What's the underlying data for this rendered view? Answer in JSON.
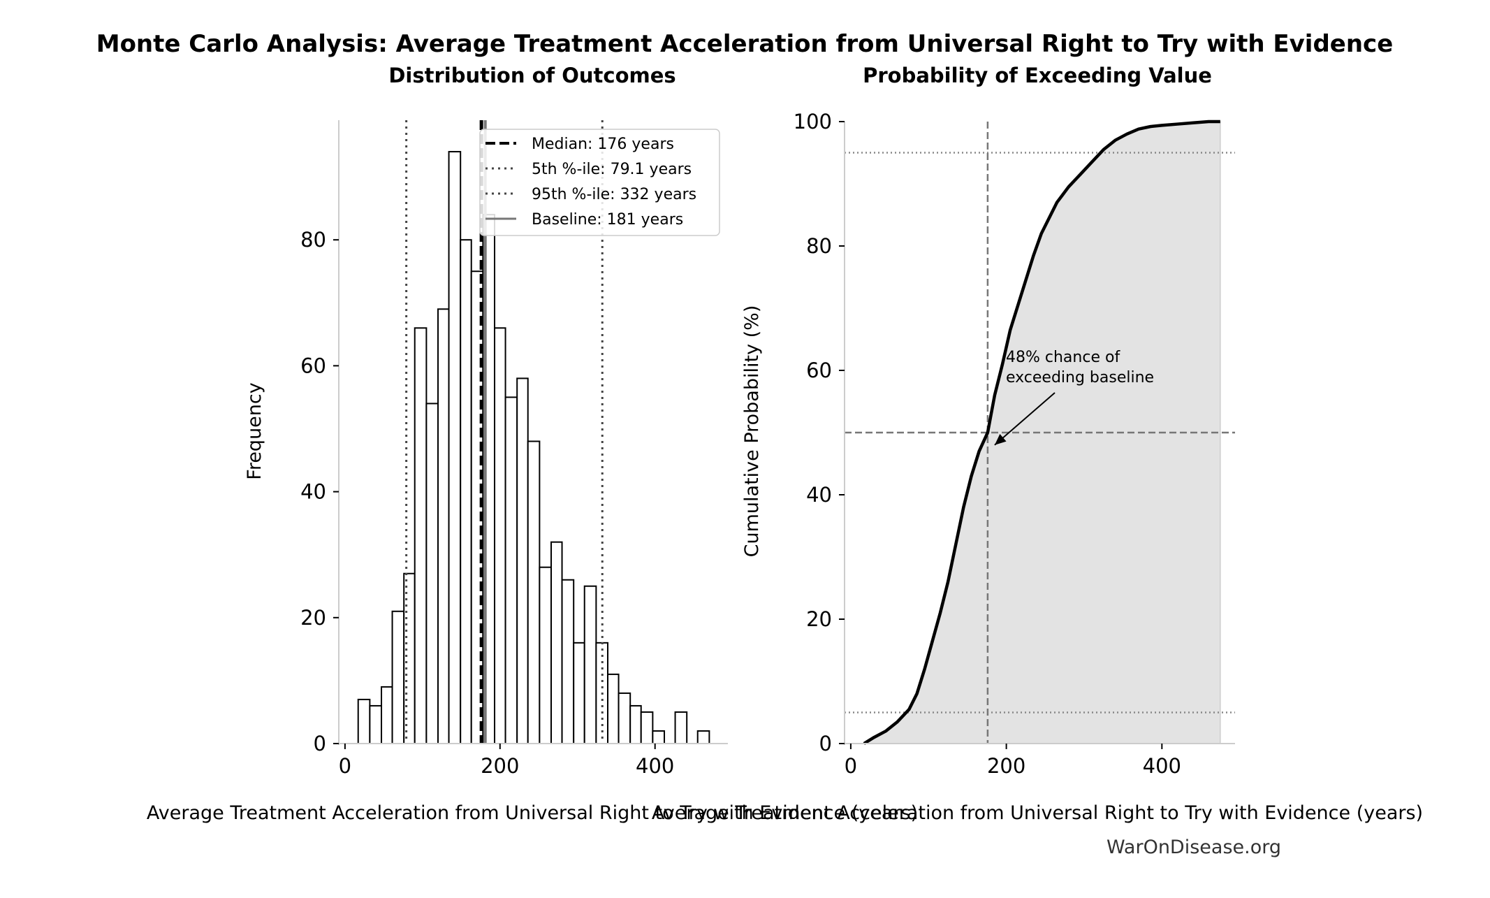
{
  "figure": {
    "title": "Monte Carlo Analysis: Average Treatment Acceleration from Universal Right to Try with Evidence",
    "footer": "WarOnDisease.org"
  },
  "chart_data": [
    {
      "type": "bar",
      "subtype": "histogram",
      "title": "Distribution of Outcomes",
      "xlabel": "Average Treatment Acceleration from Universal Right to Try with Evidence (years)",
      "ylabel": "Frequency",
      "xlim": [
        -8,
        494
      ],
      "ylim": [
        0,
        99
      ],
      "xticks": [
        0,
        200,
        400
      ],
      "yticks": [
        0,
        20,
        40,
        60,
        80
      ],
      "bins": [
        {
          "x0": 17,
          "x1": 32,
          "count": 7
        },
        {
          "x0": 32,
          "x1": 47,
          "count": 6
        },
        {
          "x0": 47,
          "x1": 61,
          "count": 9
        },
        {
          "x0": 61,
          "x1": 76,
          "count": 21
        },
        {
          "x0": 76,
          "x1": 90,
          "count": 27
        },
        {
          "x0": 90,
          "x1": 105,
          "count": 66
        },
        {
          "x0": 105,
          "x1": 120,
          "count": 54
        },
        {
          "x0": 120,
          "x1": 134,
          "count": 69
        },
        {
          "x0": 134,
          "x1": 149,
          "count": 94
        },
        {
          "x0": 149,
          "x1": 163,
          "count": 80
        },
        {
          "x0": 163,
          "x1": 178,
          "count": 75
        },
        {
          "x0": 178,
          "x1": 193,
          "count": 84
        },
        {
          "x0": 193,
          "x1": 207,
          "count": 66
        },
        {
          "x0": 207,
          "x1": 222,
          "count": 55
        },
        {
          "x0": 222,
          "x1": 236,
          "count": 58
        },
        {
          "x0": 236,
          "x1": 251,
          "count": 48
        },
        {
          "x0": 251,
          "x1": 266,
          "count": 28
        },
        {
          "x0": 266,
          "x1": 280,
          "count": 32
        },
        {
          "x0": 280,
          "x1": 295,
          "count": 26
        },
        {
          "x0": 295,
          "x1": 309,
          "count": 16
        },
        {
          "x0": 309,
          "x1": 324,
          "count": 25
        },
        {
          "x0": 324,
          "x1": 339,
          "count": 16
        },
        {
          "x0": 339,
          "x1": 353,
          "count": 11
        },
        {
          "x0": 353,
          "x1": 368,
          "count": 8
        },
        {
          "x0": 368,
          "x1": 382,
          "count": 6
        },
        {
          "x0": 382,
          "x1": 397,
          "count": 5
        },
        {
          "x0": 397,
          "x1": 412,
          "count": 2
        },
        {
          "x0": 426,
          "x1": 441,
          "count": 5
        },
        {
          "x0": 455,
          "x1": 470,
          "count": 2
        }
      ],
      "reference_lines": [
        {
          "label": "Median: 176 years",
          "value": 176,
          "style": "dashed",
          "color": "#000000"
        },
        {
          "label": "5th %-ile: 79.1 years",
          "value": 79.1,
          "style": "dotted",
          "color": "#444444"
        },
        {
          "label": "95th %-ile: 332 years",
          "value": 332,
          "style": "dotted",
          "color": "#444444"
        },
        {
          "label": "Baseline: 181 years",
          "value": 181,
          "style": "solid",
          "color": "#777777"
        }
      ],
      "legend_position": "top-right"
    },
    {
      "type": "area",
      "title": "Probability of Exceeding Value",
      "xlabel": "Average Treatment Acceleration from Universal Right to Try with Evidence (years)",
      "ylabel": "Cumulative Probability (%)",
      "xlim": [
        -8,
        494
      ],
      "ylim": [
        0,
        100
      ],
      "xticks": [
        0,
        200,
        400
      ],
      "yticks": [
        0,
        20,
        40,
        60,
        80,
        100
      ],
      "x": [
        17,
        30,
        45,
        60,
        75,
        85,
        95,
        105,
        115,
        125,
        135,
        145,
        155,
        165,
        176,
        185,
        195,
        205,
        215,
        225,
        235,
        245,
        255,
        265,
        280,
        295,
        310,
        325,
        340,
        355,
        370,
        385,
        400,
        420,
        440,
        460,
        475
      ],
      "y": [
        0,
        1,
        2,
        3.5,
        5.5,
        8,
        12,
        16.5,
        21,
        26,
        32,
        38,
        43,
        47,
        50,
        56,
        61,
        66.5,
        70.5,
        74.5,
        78.5,
        82,
        84.5,
        87,
        89.5,
        91.5,
        93.5,
        95.5,
        97,
        98,
        98.8,
        99.2,
        99.4,
        99.6,
        99.8,
        100,
        100
      ],
      "hlines": [
        5,
        50,
        95
      ],
      "vline": 176,
      "annotation": {
        "text_lines": [
          "48% chance of",
          "exceeding baseline"
        ],
        "points_to": [
          176,
          48
        ]
      }
    }
  ]
}
